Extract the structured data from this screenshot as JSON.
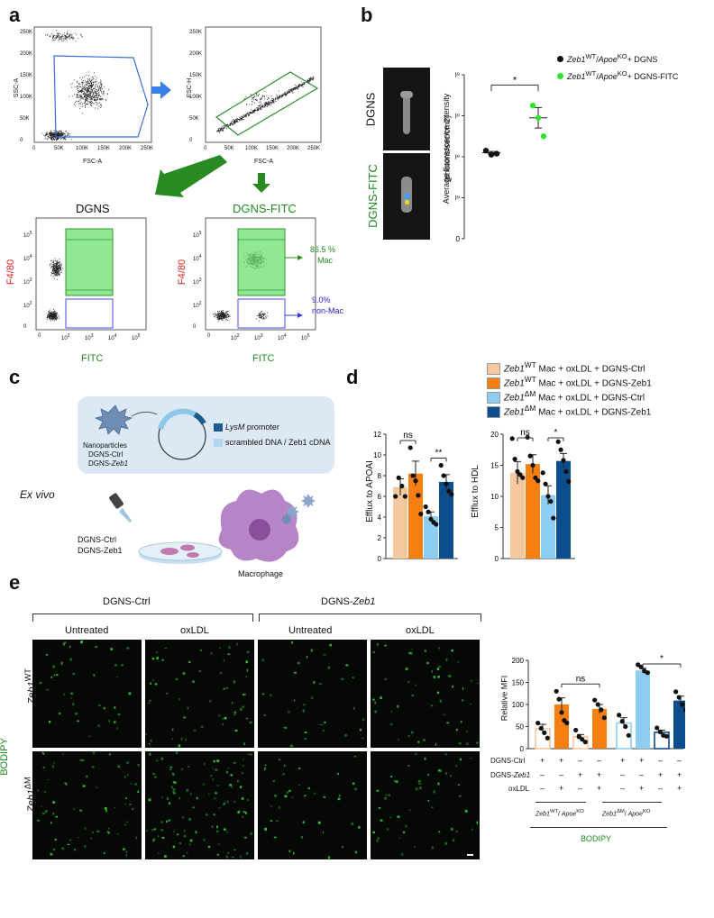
{
  "panels": {
    "a": "a",
    "b": "b",
    "c": "c",
    "d": "d",
    "e": "e"
  },
  "panel_a": {
    "fsc_plot": {
      "xlabel": "FSC-A",
      "ylabel": "SSC-A",
      "xticks": [
        "0",
        "50K",
        "100K",
        "150K",
        "200K",
        "250K"
      ],
      "yticks": [
        "0",
        "50K",
        "100K",
        "150K",
        "200K",
        "250K"
      ]
    },
    "singlet_plot": {
      "xlabel": "FSC-A",
      "ylabel": "FSC-H",
      "xticks": [
        "0",
        "50K",
        "100K",
        "150K",
        "200K",
        "250K"
      ],
      "yticks": [
        "0",
        "50K",
        "100K",
        "150K",
        "200K",
        "250K"
      ]
    },
    "left_title": "DGNS",
    "right_title": "DGNS-FITC",
    "ylabel": "F4/80",
    "xlabel": "FITC",
    "gate_mac_pct": "86.5 %",
    "gate_mac": "Mac",
    "gate_nonmac_pct": "9.0%",
    "gate_nonmac": "non-Mac",
    "log_ticks": [
      "0",
      "10",
      "10",
      "10",
      "10"
    ],
    "log_exps": [
      "",
      "2",
      "3",
      "4",
      "5"
    ]
  },
  "panel_b": {
    "img_top": "DGNS",
    "img_bottom": "DGNS-FITC",
    "ylabel_line1": "Average fluorescence intensity",
    "ylabel_line2": "(photons/sec/cm2)",
    "legend": [
      {
        "gene": "Zeb1",
        "sup1": "WT",
        "sep": "/",
        "gene2": "Apoe",
        "sup2": "KO",
        "rest": "+ DGNS",
        "color": "#111111"
      },
      {
        "gene": "Zeb1",
        "sup1": "WT",
        "sep": "/",
        "gene2": "Apoe",
        "sup2": "KO",
        "rest": "+ DGNS-FITC",
        "color": "#2fe32f"
      }
    ],
    "sig": "*",
    "colors": {
      "black": "#111111",
      "green": "#2fe32f"
    }
  },
  "panel_c": {
    "np_label": [
      "Nanoparticles",
      "DGNS-Ctrl",
      "DGNS-Zeb1"
    ],
    "legend_promoter_italic": "LysM",
    "legend_promoter": " promoter",
    "legend_cdna": "scrambled DNA / Zeb1 cDNA",
    "ex_vivo": "Ex vivo",
    "drops": [
      "DGNS-Ctrl",
      "DGNS-Zeb1"
    ],
    "macrophage": "Macrophage",
    "colors": {
      "promoter": "#1c5a8f",
      "cdna": "#aed6ec",
      "box": "#dce9f4"
    }
  },
  "legend_d": [
    {
      "gene": "Zeb1",
      "sup": "WT",
      "rest": "Mac + oxLDL + DGNS-Ctrl",
      "color": "#f5c8a0"
    },
    {
      "gene": "Zeb1",
      "sup": "WT",
      "rest": "Mac + oxLDL + DGNS-Zeb1",
      "color": "#f57f10"
    },
    {
      "gene": "Zeb1",
      "sup": "ΔM",
      "rest": "Mac + oxLDL + DGNS-Ctrl",
      "color": "#8ecdf2"
    },
    {
      "gene": "Zeb1",
      "sup": "ΔM",
      "rest": "Mac + oxLDL + DGNS-Zeb1",
      "color": "#0d4d8c"
    }
  ],
  "panel_e": {
    "group_ctrl": "DGNS-Ctrl",
    "group_zeb_prefix": "DGNS-",
    "group_zeb_gene": "Zeb1",
    "cols": [
      "Untreated",
      "oxLDL",
      "Untreated",
      "oxLDL"
    ],
    "rows": [
      {
        "gene": "Zeb1",
        "sup": "WT"
      },
      {
        "gene": "Zeb1",
        "sup": "ΔM"
      }
    ],
    "stain": "BODIPY",
    "table_rows": [
      "DGNS-Ctrl",
      "DGNS-Zeb1",
      "oxLDL"
    ],
    "table_marks": [
      [
        "+",
        "+",
        "–",
        "–",
        "+",
        "+",
        "–",
        "–"
      ],
      [
        "–",
        "–",
        "+",
        "+",
        "–",
        "–",
        "+",
        "+"
      ],
      [
        "–",
        "+",
        "–",
        "+",
        "–",
        "+",
        "–",
        "+"
      ]
    ],
    "geno_wt": "Zeb1 WT/ Apoe KO",
    "geno_dm": "Zeb1 ΔM/ Apoe KO",
    "bottom_label": "BODIPY"
  },
  "chart_data": [
    {
      "id": "b_scatter",
      "type": "scatter",
      "ylabel": "Average fluorescence intensity (photons/sec/cm2)",
      "ylim": [
        0,
        8000000000.0
      ],
      "yticks": [
        0,
        2000000000.0,
        4000000000.0,
        6000000000.0,
        8000000000.0
      ],
      "ytick_labels": [
        "0",
        "2×10⁹",
        "4×10⁹",
        "6×10⁹",
        "8×10⁹"
      ],
      "series": [
        {
          "points": [
            4300000000.0,
            4100000000.0,
            4150000000.0
          ],
          "mean": 4200000000.0,
          "sem": 60000000.0,
          "color": "#111111"
        },
        {
          "points": [
            6500000000.0,
            5900000000.0,
            5000000000.0
          ],
          "mean": 5900000000.0,
          "sem": 500000000.0,
          "color": "#2fe32f"
        }
      ],
      "sig": "*"
    },
    {
      "id": "d_apoai",
      "type": "bar",
      "ylabel": "Efflux to APOAI",
      "ylim": [
        0,
        12
      ],
      "yticks": [
        0,
        2,
        4,
        6,
        8,
        10,
        12
      ],
      "series": [
        {
          "mean": 6.9,
          "sem": 0.8,
          "points": [
            6.0,
            7.8,
            7.0,
            6.0
          ],
          "color": "#f5c8a0"
        },
        {
          "mean": 8.2,
          "sem": 1.2,
          "points": [
            10.7,
            8.0,
            7.5,
            6.1,
            4.3
          ],
          "color": "#f57f10"
        },
        {
          "mean": 4.1,
          "sem": 0.4,
          "points": [
            5.0,
            4.5,
            3.8,
            3.5,
            3.3
          ],
          "color": "#8ecdf2"
        },
        {
          "mean": 7.4,
          "sem": 0.7,
          "points": [
            9.0,
            8.0,
            7.2,
            6.5,
            6.2
          ],
          "color": "#0d4d8c"
        }
      ],
      "sig": [
        {
          "between": [
            0,
            1
          ],
          "label": "ns"
        },
        {
          "between": [
            2,
            3
          ],
          "label": "**"
        }
      ]
    },
    {
      "id": "d_hdl",
      "type": "bar",
      "ylabel": "Efflux to HDL",
      "ylim": [
        0,
        20
      ],
      "yticks": [
        0,
        5,
        10,
        15,
        20
      ],
      "series": [
        {
          "mean": 13.8,
          "sem": 1.8,
          "points": [
            19.3,
            16.0,
            14.0,
            13.5,
            13.0
          ],
          "color": "#f5c8a0"
        },
        {
          "mean": 15.2,
          "sem": 1.5,
          "points": [
            19.5,
            16.5,
            15.0,
            13.0,
            12.5
          ],
          "color": "#f57f10"
        },
        {
          "mean": 10.2,
          "sem": 1.5,
          "points": [
            13.8,
            12.0,
            10.0,
            9.2,
            6.5
          ],
          "color": "#8ecdf2"
        },
        {
          "mean": 15.7,
          "sem": 1.2,
          "points": [
            18.8,
            17.5,
            15.8,
            14.0,
            12.4
          ],
          "color": "#0d4d8c"
        }
      ],
      "sig": [
        {
          "between": [
            0,
            1
          ],
          "label": "ns"
        },
        {
          "between": [
            2,
            3
          ],
          "label": "*"
        }
      ]
    },
    {
      "id": "e_mfi",
      "type": "bar",
      "ylabel": "Relative MFI",
      "ylim": [
        0,
        200
      ],
      "yticks": [
        0,
        50,
        100,
        150,
        200
      ],
      "series": [
        {
          "mean": 45,
          "sem": 10,
          "points": [
            58,
            46,
            36,
            24
          ],
          "color": "#f5c8a0"
        },
        {
          "mean": 100,
          "sem": 15,
          "points": [
            130,
            112,
            82,
            64,
            58
          ],
          "color": "#f57f10"
        },
        {
          "mean": 27,
          "sem": 5,
          "points": [
            42,
            27,
            21,
            15
          ],
          "color": "#f5c8a0"
        },
        {
          "mean": 90,
          "sem": 10,
          "points": [
            110,
            100,
            88,
            70
          ],
          "color": "#f57f10"
        },
        {
          "mean": 58,
          "sem": 12,
          "points": [
            76,
            62,
            50,
            30
          ],
          "color": "#8ecdf2"
        },
        {
          "mean": 177,
          "sem": 5,
          "points": [
            190,
            185,
            176,
            172
          ],
          "color": "#8ecdf2"
        },
        {
          "mean": 37,
          "sem": 5,
          "points": [
            47,
            38,
            30,
            28
          ],
          "color": "#0d4d8c"
        },
        {
          "mean": 109,
          "sem": 10,
          "points": [
            129,
            116,
            100,
            88
          ],
          "color": "#0d4d8c"
        }
      ],
      "hollow": [
        true,
        false,
        true,
        false,
        true,
        false,
        true,
        false
      ],
      "sig": [
        {
          "between": [
            1,
            3
          ],
          "label": "ns"
        },
        {
          "between": [
            5,
            7
          ],
          "label": "*"
        }
      ]
    }
  ]
}
